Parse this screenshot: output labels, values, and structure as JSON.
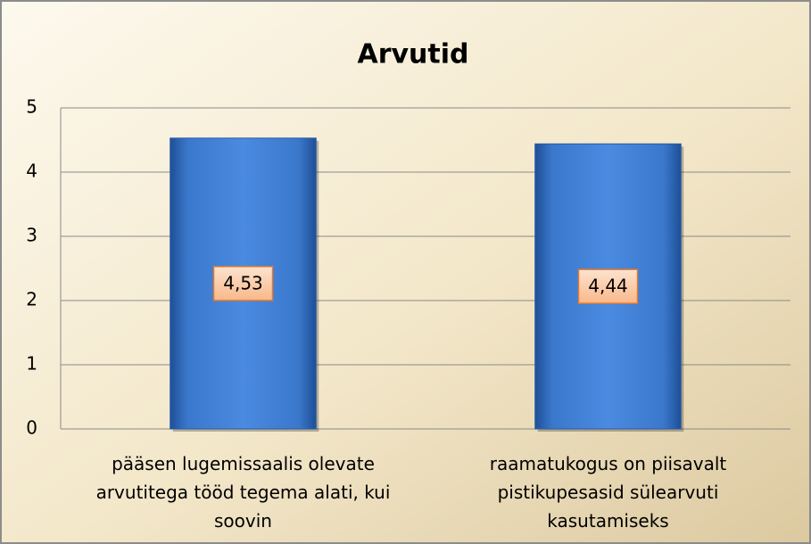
{
  "chart_data": {
    "type": "bar",
    "title": "Arvutid",
    "categories": [
      "pääsen lugemissaalis olevate arvutitega tööd tegema alati, kui soovin",
      "raamatukogus on piisavalt pistikupesasid sülearvuti kasutamiseks"
    ],
    "values": [
      4.53,
      4.44
    ],
    "value_labels": [
      "4,53",
      "4,44"
    ],
    "color": "#3a78cc",
    "ylim": [
      0,
      5
    ],
    "yticks": [
      0,
      1,
      2,
      3,
      4,
      5
    ],
    "grid": true
  }
}
